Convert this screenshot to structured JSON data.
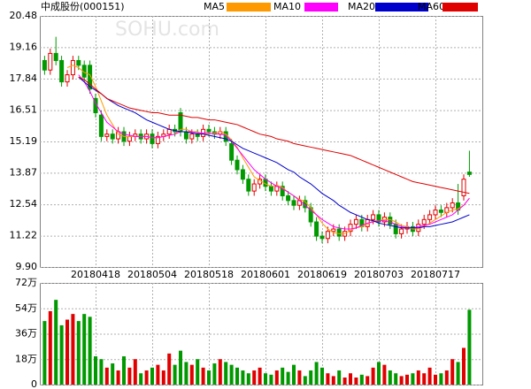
{
  "chart_data": [
    {
      "type": "candlestick",
      "title": "中成股份(000151)",
      "watermark": "SOHU.com",
      "categories": [
        null,
        null,
        null,
        null,
        null,
        null,
        null,
        null,
        null,
        "20180418",
        null,
        null,
        null,
        null,
        null,
        null,
        null,
        null,
        null,
        "20180504",
        null,
        null,
        null,
        null,
        null,
        null,
        null,
        null,
        null,
        "20180518",
        null,
        null,
        null,
        null,
        null,
        null,
        null,
        null,
        null,
        "20180601",
        null,
        null,
        null,
        null,
        null,
        null,
        null,
        null,
        null,
        "20180619",
        null,
        null,
        null,
        null,
        null,
        null,
        null,
        null,
        null,
        "20180703",
        null,
        null,
        null,
        null,
        null,
        null,
        null,
        null,
        null,
        "20180717",
        null,
        null,
        null,
        null,
        null,
        null
      ],
      "open": [
        18.6,
        18.2,
        18.9,
        18.6,
        17.7,
        18.0,
        18.6,
        18.4,
        18.4,
        17.0,
        16.3,
        15.4,
        15.5,
        15.3,
        15.6,
        15.2,
        15.4,
        15.5,
        15.3,
        15.5,
        15.1,
        15.4,
        15.5,
        15.7,
        16.4,
        15.6,
        15.3,
        15.5,
        15.4,
        15.7,
        15.6,
        15.5,
        15.6,
        15.1,
        14.4,
        14.0,
        13.6,
        13.1,
        13.4,
        13.6,
        13.3,
        13.1,
        13.3,
        12.9,
        12.7,
        12.5,
        12.7,
        12.4,
        11.8,
        11.2,
        11.1,
        11.4,
        11.5,
        11.2,
        11.4,
        11.7,
        11.9,
        11.6,
        11.9,
        12.1,
        11.8,
        12.0,
        11.7,
        11.3,
        11.5,
        11.6,
        11.4,
        11.7,
        11.9,
        12.1,
        12.3,
        12.2,
        12.4,
        12.6,
        12.9,
        13.9
      ],
      "high": [
        18.8,
        19.1,
        19.6,
        18.8,
        18.2,
        18.8,
        18.8,
        18.6,
        18.6,
        17.2,
        16.5,
        15.7,
        15.7,
        15.8,
        15.8,
        15.6,
        15.7,
        15.7,
        15.7,
        15.7,
        15.6,
        15.7,
        15.9,
        15.9,
        16.6,
        15.8,
        15.7,
        15.7,
        15.9,
        15.9,
        15.8,
        15.8,
        15.8,
        15.3,
        14.6,
        14.2,
        13.8,
        13.6,
        13.8,
        13.8,
        13.5,
        13.5,
        13.5,
        13.1,
        12.9,
        12.9,
        12.9,
        12.6,
        12.0,
        11.4,
        11.6,
        11.7,
        11.7,
        11.6,
        11.9,
        12.1,
        12.1,
        12.1,
        12.3,
        12.3,
        12.2,
        12.2,
        11.9,
        11.7,
        11.8,
        11.8,
        11.9,
        12.1,
        12.3,
        12.5,
        12.5,
        12.6,
        12.8,
        13.4,
        13.8,
        14.8
      ],
      "low": [
        18.0,
        18.0,
        18.4,
        17.5,
        17.5,
        17.8,
        18.2,
        17.7,
        17.2,
        16.2,
        15.2,
        15.2,
        15.1,
        15.1,
        15.0,
        15.0,
        15.2,
        15.1,
        15.1,
        14.9,
        14.9,
        15.2,
        15.3,
        15.4,
        15.4,
        15.1,
        15.1,
        15.2,
        15.2,
        15.4,
        15.3,
        15.3,
        15.0,
        14.2,
        13.8,
        13.4,
        12.9,
        12.9,
        13.2,
        13.1,
        12.9,
        12.9,
        12.7,
        12.5,
        12.3,
        12.3,
        12.2,
        11.6,
        11.0,
        10.9,
        10.9,
        11.2,
        11.0,
        11.0,
        11.2,
        11.5,
        11.4,
        11.4,
        11.7,
        11.6,
        11.6,
        11.5,
        11.1,
        11.1,
        11.3,
        11.2,
        11.2,
        11.5,
        11.7,
        11.9,
        12.0,
        12.0,
        12.2,
        12.1,
        12.7,
        13.7
      ],
      "close": [
        18.2,
        18.9,
        18.6,
        17.7,
        18.0,
        18.6,
        18.4,
        17.9,
        17.4,
        16.4,
        15.4,
        15.5,
        15.3,
        15.6,
        15.2,
        15.4,
        15.5,
        15.3,
        15.5,
        15.1,
        15.4,
        15.5,
        15.7,
        15.6,
        15.6,
        15.3,
        15.5,
        15.4,
        15.7,
        15.6,
        15.5,
        15.6,
        15.2,
        14.4,
        14.0,
        13.6,
        13.1,
        13.4,
        13.6,
        13.3,
        13.1,
        13.3,
        12.9,
        12.7,
        12.5,
        12.7,
        12.4,
        11.8,
        11.2,
        11.1,
        11.4,
        11.5,
        11.2,
        11.4,
        11.7,
        11.9,
        11.6,
        11.9,
        12.1,
        11.8,
        12.0,
        11.7,
        11.3,
        11.5,
        11.6,
        11.4,
        11.7,
        11.9,
        12.1,
        12.3,
        12.2,
        12.4,
        12.6,
        12.3,
        13.6,
        13.8
      ],
      "up_color": "#e00000",
      "down_color": "#009900",
      "series": [
        {
          "name": "MA5",
          "color": "#ff9900",
          "values": [
            null,
            null,
            null,
            null,
            18.3,
            18.4,
            18.3,
            18.1,
            18.0,
            17.5,
            16.9,
            16.3,
            15.9,
            15.5,
            15.4,
            15.4,
            15.4,
            15.4,
            15.4,
            15.35,
            15.35,
            15.4,
            15.45,
            15.5,
            15.7,
            15.7,
            15.6,
            15.6,
            15.5,
            15.5,
            15.55,
            15.6,
            15.5,
            15.25,
            14.95,
            14.5,
            14.1,
            13.7,
            13.55,
            13.4,
            13.3,
            13.35,
            13.25,
            13.05,
            12.9,
            12.75,
            12.65,
            12.4,
            12.1,
            11.75,
            11.5,
            11.35,
            11.3,
            11.3,
            11.45,
            11.55,
            11.6,
            11.7,
            11.85,
            11.85,
            11.9,
            11.9,
            11.8,
            11.65,
            11.6,
            11.5,
            11.5,
            11.6,
            11.75,
            11.9,
            12.05,
            12.2,
            12.3,
            12.35,
            12.5,
            12.8
          ]
        },
        {
          "name": "MA10",
          "color": "#ff00ff",
          "values": [
            null,
            null,
            null,
            null,
            null,
            null,
            18.0,
            17.7,
            17.3,
            16.8,
            16.4,
            16.0,
            15.8,
            15.6,
            15.5,
            15.45,
            15.4,
            15.4,
            15.4,
            15.35,
            15.35,
            15.4,
            15.45,
            15.5,
            15.6,
            15.6,
            15.6,
            15.55,
            15.55,
            15.55,
            15.5,
            15.5,
            15.45,
            15.2,
            14.9,
            14.6,
            14.3,
            14.0,
            13.8,
            13.6,
            13.45,
            13.3,
            13.2,
            13.05,
            12.9,
            12.7,
            12.5,
            12.3,
            12.1,
            11.9,
            11.75,
            11.6,
            11.55,
            11.5,
            11.5,
            11.55,
            11.65,
            11.75,
            11.8,
            11.85,
            11.85,
            11.8,
            11.7,
            11.6,
            11.55,
            11.55,
            11.6,
            11.65,
            11.7,
            11.8,
            11.9,
            12.0,
            12.1,
            12.3,
            12.5,
            12.8
          ]
        },
        {
          "name": "MA20",
          "color": "#0000cc",
          "values": [
            null,
            null,
            null,
            null,
            null,
            null,
            17.9,
            17.7,
            17.5,
            17.35,
            17.2,
            17.0,
            16.85,
            16.7,
            16.6,
            16.5,
            16.4,
            16.25,
            16.1,
            16.0,
            15.9,
            15.8,
            15.7,
            15.65,
            15.6,
            15.6,
            15.55,
            15.5,
            15.5,
            15.45,
            15.4,
            15.35,
            15.3,
            15.2,
            15.05,
            14.9,
            14.8,
            14.7,
            14.6,
            14.5,
            14.4,
            14.3,
            14.15,
            14.0,
            13.9,
            13.7,
            13.55,
            13.4,
            13.2,
            13.0,
            12.85,
            12.7,
            12.5,
            12.35,
            12.2,
            12.1,
            12.0,
            11.9,
            11.85,
            11.75,
            11.7,
            11.65,
            11.6,
            11.55,
            11.55,
            11.55,
            11.55,
            11.6,
            11.6,
            11.65,
            11.7,
            11.75,
            11.8,
            11.9,
            12.0,
            12.1
          ]
        },
        {
          "name": "MA60",
          "color": "#e00000",
          "values": [
            null,
            null,
            null,
            null,
            null,
            null,
            17.9,
            17.8,
            17.6,
            17.4,
            17.2,
            17.0,
            16.9,
            16.8,
            16.7,
            16.6,
            16.55,
            16.5,
            16.45,
            16.4,
            16.4,
            16.35,
            16.3,
            16.3,
            16.3,
            16.25,
            16.2,
            16.2,
            16.15,
            16.1,
            16.1,
            16.05,
            16.0,
            15.95,
            15.9,
            15.8,
            15.7,
            15.6,
            15.5,
            15.45,
            15.4,
            15.3,
            15.25,
            15.2,
            15.1,
            15.05,
            15.0,
            14.95,
            14.9,
            14.85,
            14.8,
            14.75,
            14.7,
            14.65,
            14.6,
            14.5,
            14.4,
            14.3,
            14.2,
            14.1,
            14.0,
            13.9,
            13.8,
            13.7,
            13.6,
            13.5,
            13.45,
            13.4,
            13.35,
            13.3,
            13.25,
            13.2,
            13.15,
            13.1,
            13.05,
            13.0
          ]
        }
      ],
      "ylim": [
        9.9,
        20.48
      ],
      "yticks": [
        {
          "value": 9.9,
          "label": "9.90"
        },
        11.22,
        12.54,
        13.87,
        15.19,
        16.51,
        17.84,
        19.16,
        20.48
      ],
      "grid": true
    },
    {
      "type": "bar",
      "values": [
        45,
        52,
        60,
        42,
        46,
        50,
        45,
        50,
        48,
        20,
        18,
        12,
        15,
        10,
        20,
        12,
        18,
        8,
        10,
        12,
        14,
        10,
        22,
        14,
        24,
        16,
        14,
        18,
        12,
        10,
        15,
        18,
        16,
        14,
        12,
        10,
        8,
        10,
        12,
        8,
        7,
        10,
        12,
        9,
        14,
        10,
        6,
        10,
        16,
        12,
        8,
        6,
        10,
        5,
        8,
        5,
        7,
        6,
        12,
        16,
        14,
        10,
        8,
        6,
        7,
        8,
        10,
        8,
        12,
        7,
        8,
        10,
        18,
        16,
        26,
        53
      ],
      "ylim": [
        0,
        72
      ],
      "yticks": [
        0,
        {
          "value": 18,
          "label": "18万"
        },
        {
          "value": 36,
          "label": "36万"
        },
        {
          "value": 54,
          "label": "54万"
        },
        {
          "value": 72,
          "label": "72万"
        }
      ],
      "grid": true
    }
  ]
}
